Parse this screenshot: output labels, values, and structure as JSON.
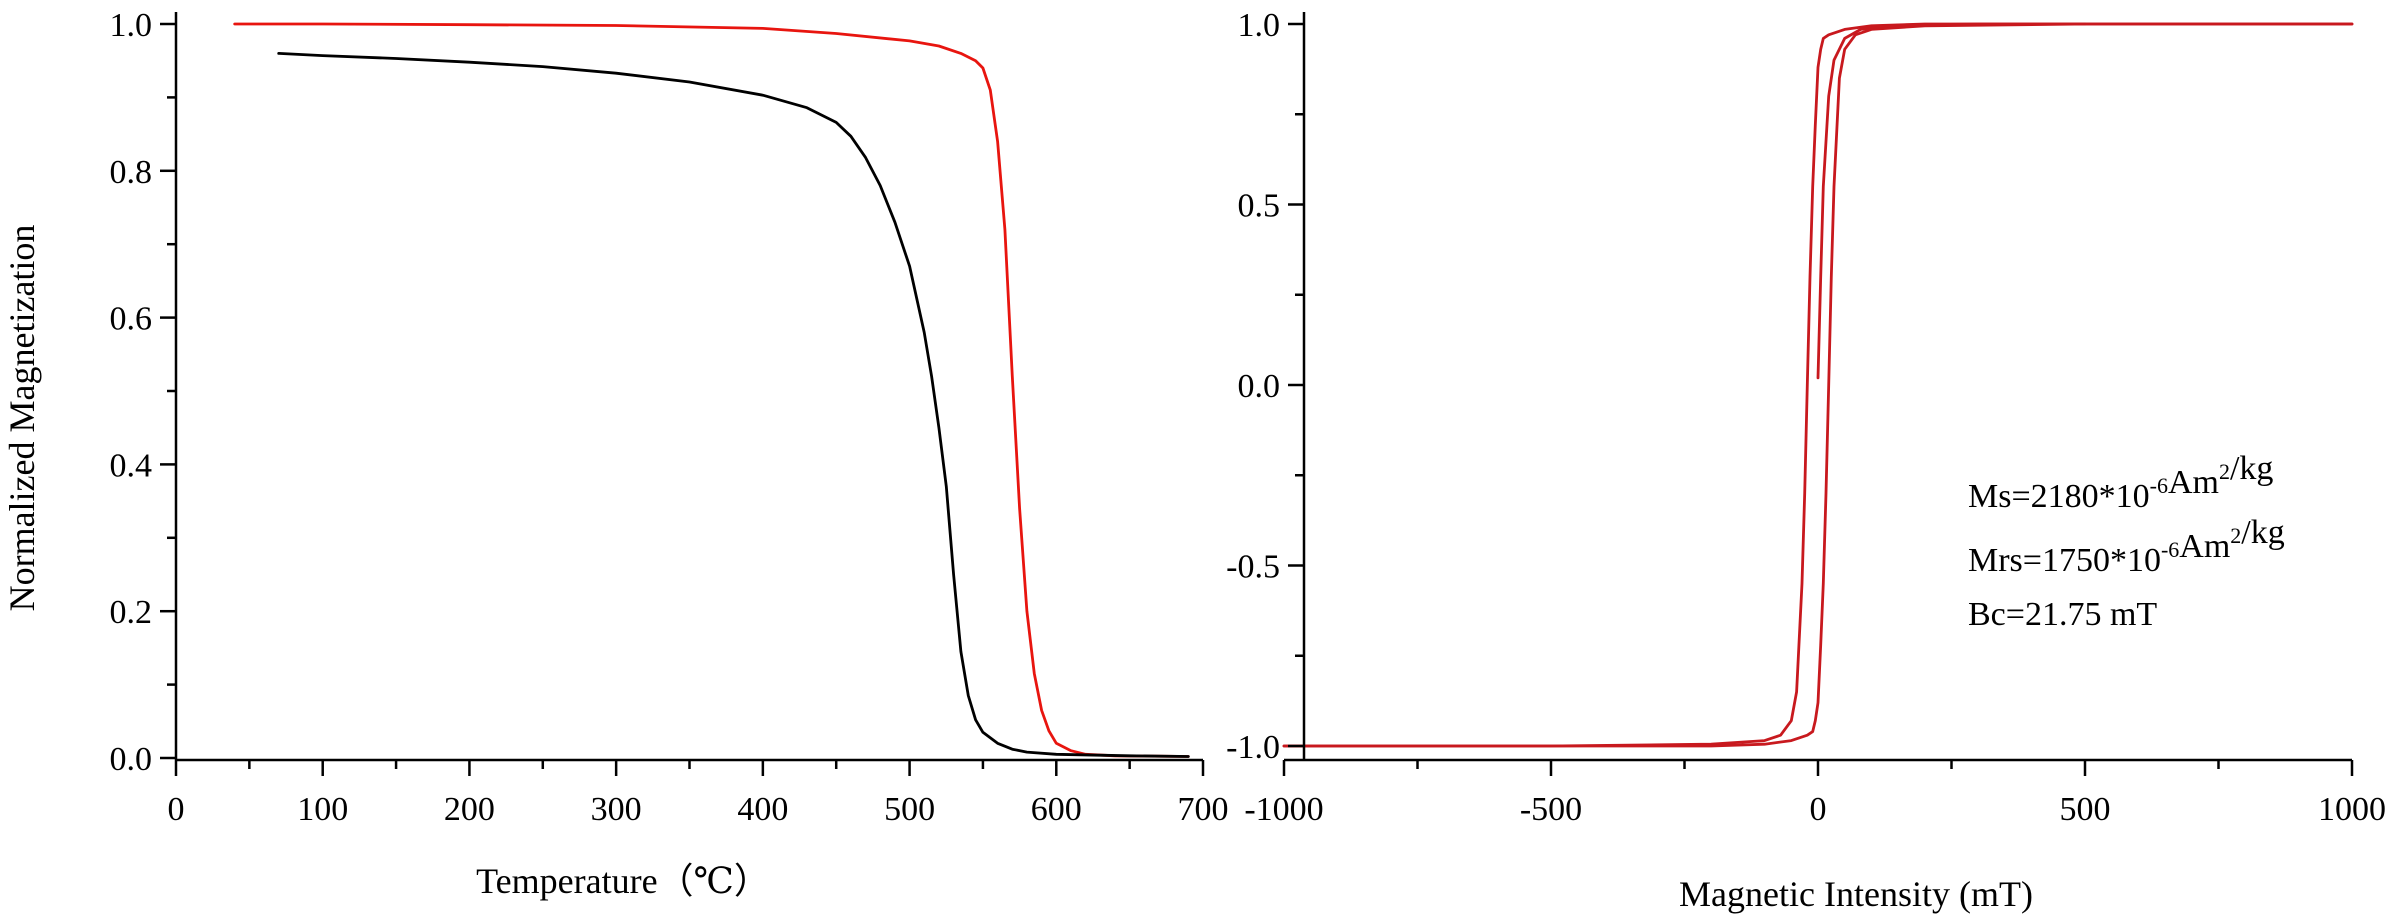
{
  "chart_data": [
    {
      "type": "line",
      "title": "",
      "xlabel": "Temperature（℃）",
      "ylabel": "Normalized Magnetization",
      "xlim": [
        0,
        700
      ],
      "ylim": [
        0,
        1.0
      ],
      "xticks": [
        0,
        100,
        200,
        300,
        400,
        500,
        600,
        700
      ],
      "xtick_labels": [
        "0",
        "100",
        "200",
        "300",
        "400",
        "500",
        "600",
        "700"
      ],
      "yticks": [
        0,
        0.2,
        0.4,
        0.6,
        0.8,
        1.0
      ],
      "ytick_labels": [
        "0.0",
        "0.2",
        "0.4",
        "0.6",
        "0.8",
        "1.0"
      ],
      "grid": false,
      "series": [
        {
          "color": "#e8150f",
          "points": [
            [
              40,
              1.0
            ],
            [
              100,
              1.0
            ],
            [
              200,
              0.999
            ],
            [
              300,
              0.998
            ],
            [
              400,
              0.994
            ],
            [
              450,
              0.987
            ],
            [
              500,
              0.977
            ],
            [
              520,
              0.97
            ],
            [
              535,
              0.96
            ],
            [
              545,
              0.95
            ],
            [
              550,
              0.94
            ],
            [
              555,
              0.91
            ],
            [
              560,
              0.84
            ],
            [
              565,
              0.72
            ],
            [
              570,
              0.52
            ],
            [
              575,
              0.34
            ],
            [
              580,
              0.2
            ],
            [
              585,
              0.115
            ],
            [
              590,
              0.065
            ],
            [
              595,
              0.037
            ],
            [
              600,
              0.02
            ],
            [
              610,
              0.01
            ],
            [
              620,
              0.005
            ],
            [
              640,
              0.003
            ],
            [
              690,
              0.002
            ]
          ]
        },
        {
          "color": "#000000",
          "points": [
            [
              70,
              0.96
            ],
            [
              100,
              0.957
            ],
            [
              150,
              0.953
            ],
            [
              200,
              0.948
            ],
            [
              250,
              0.942
            ],
            [
              300,
              0.933
            ],
            [
              350,
              0.921
            ],
            [
              400,
              0.903
            ],
            [
              430,
              0.886
            ],
            [
              450,
              0.866
            ],
            [
              460,
              0.847
            ],
            [
              470,
              0.818
            ],
            [
              480,
              0.78
            ],
            [
              490,
              0.73
            ],
            [
              500,
              0.67
            ],
            [
              510,
              0.58
            ],
            [
              515,
              0.52
            ],
            [
              520,
              0.45
            ],
            [
              525,
              0.37
            ],
            [
              530,
              0.25
            ],
            [
              535,
              0.145
            ],
            [
              540,
              0.085
            ],
            [
              545,
              0.052
            ],
            [
              550,
              0.035
            ],
            [
              560,
              0.02
            ],
            [
              570,
              0.012
            ],
            [
              580,
              0.008
            ],
            [
              600,
              0.005
            ],
            [
              650,
              0.003
            ],
            [
              690,
              0.002
            ]
          ]
        }
      ]
    },
    {
      "type": "line",
      "title": "",
      "xlabel": "Magnetic Intensity (mT)",
      "ylabel": "",
      "xlim": [
        -1000,
        1000
      ],
      "ylim": [
        -1.05,
        1.0
      ],
      "xticks": [
        -1000,
        -500,
        0,
        500,
        1000
      ],
      "xtick_labels": [
        "-1000",
        "-500",
        "0",
        "500",
        "1000"
      ],
      "yticks": [
        -1.0,
        -0.5,
        0.0,
        0.5,
        1.0
      ],
      "ytick_labels": [
        "-1.0",
        "-0.5",
        "0.0",
        "0.5",
        "1.0"
      ],
      "grid": false,
      "annotations": [
        {
          "pre": "Ms=2180*10",
          "sup1": "-6",
          "mid": "Am",
          "sup2": "2",
          "post": "/kg"
        },
        {
          "pre": "Mrs=1750*10",
          "sup1": "-6",
          "mid": "Am",
          "sup2": "2",
          "post": "/kg"
        },
        {
          "pre": "Bc=21.75 mT",
          "sup1": "",
          "mid": "",
          "sup2": "",
          "post": ""
        }
      ],
      "series": [
        {
          "color": "#c8191e",
          "points": [
            [
              1000,
              1.0
            ],
            [
              500,
              1.0
            ],
            [
              200,
              1.0
            ],
            [
              100,
              0.995
            ],
            [
              50,
              0.985
            ],
            [
              20,
              0.97
            ],
            [
              10,
              0.96
            ],
            [
              5,
              0.93
            ],
            [
              0,
              0.88
            ],
            [
              -5,
              0.72
            ],
            [
              -10,
              0.55
            ],
            [
              -15,
              0.3
            ],
            [
              -20,
              0.0
            ],
            [
              -25,
              -0.3
            ],
            [
              -30,
              -0.55
            ],
            [
              -40,
              -0.85
            ],
            [
              -50,
              -0.93
            ],
            [
              -70,
              -0.97
            ],
            [
              -100,
              -0.985
            ],
            [
              -200,
              -0.995
            ],
            [
              -500,
              -1.0
            ],
            [
              -1000,
              -1.0
            ]
          ]
        },
        {
          "color": "#c8191e",
          "points": [
            [
              -1000,
              -1.0
            ],
            [
              -500,
              -1.0
            ],
            [
              -200,
              -1.0
            ],
            [
              -100,
              -0.995
            ],
            [
              -50,
              -0.985
            ],
            [
              -20,
              -0.97
            ],
            [
              -10,
              -0.96
            ],
            [
              -5,
              -0.93
            ],
            [
              0,
              -0.88
            ],
            [
              5,
              -0.72
            ],
            [
              10,
              -0.55
            ],
            [
              15,
              -0.3
            ],
            [
              20,
              0.0
            ],
            [
              25,
              0.3
            ],
            [
              30,
              0.55
            ],
            [
              40,
              0.85
            ],
            [
              50,
              0.93
            ],
            [
              70,
              0.97
            ],
            [
              100,
              0.985
            ],
            [
              200,
              0.995
            ],
            [
              500,
              1.0
            ],
            [
              1000,
              1.0
            ]
          ]
        },
        {
          "color": "#c8191e",
          "points": [
            [
              0,
              0.02
            ],
            [
              5,
              0.3
            ],
            [
              10,
              0.55
            ],
            [
              20,
              0.8
            ],
            [
              30,
              0.9
            ],
            [
              50,
              0.96
            ],
            [
              80,
              0.985
            ],
            [
              150,
              0.997
            ],
            [
              300,
              1.0
            ],
            [
              500,
              1.0
            ]
          ]
        }
      ]
    }
  ]
}
